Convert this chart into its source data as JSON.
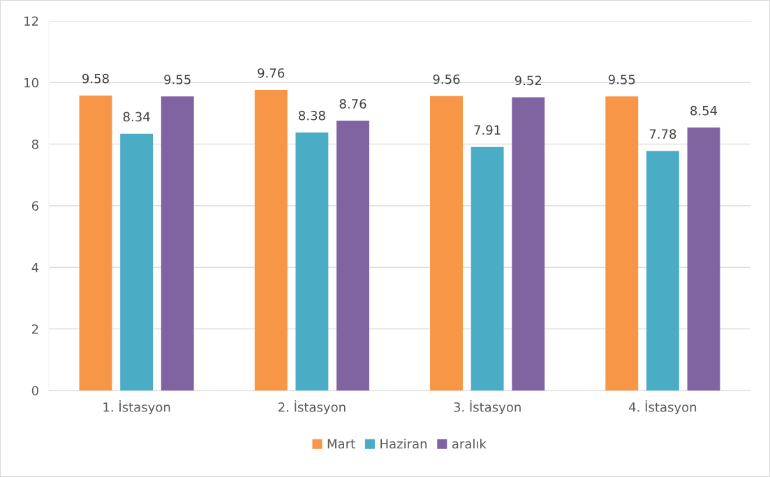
{
  "chart_data": {
    "type": "bar",
    "categories": [
      "1. İstasyon",
      "2. İstasyon",
      "3. İstasyon",
      "4. İstasyon"
    ],
    "series": [
      {
        "name": "Mart",
        "color": "#f79646",
        "values": [
          9.58,
          9.76,
          9.56,
          9.55
        ]
      },
      {
        "name": "Haziran",
        "color": "#4bacc6",
        "values": [
          8.34,
          8.38,
          7.91,
          7.78
        ]
      },
      {
        "name": "aralık",
        "color": "#8064a2",
        "values": [
          9.55,
          8.76,
          9.52,
          8.54
        ]
      }
    ],
    "ylim": [
      0,
      12
    ],
    "yticks": [
      0,
      2,
      4,
      6,
      8,
      10,
      12
    ],
    "grid": "y",
    "legend": "bottom",
    "data_labels": true
  }
}
